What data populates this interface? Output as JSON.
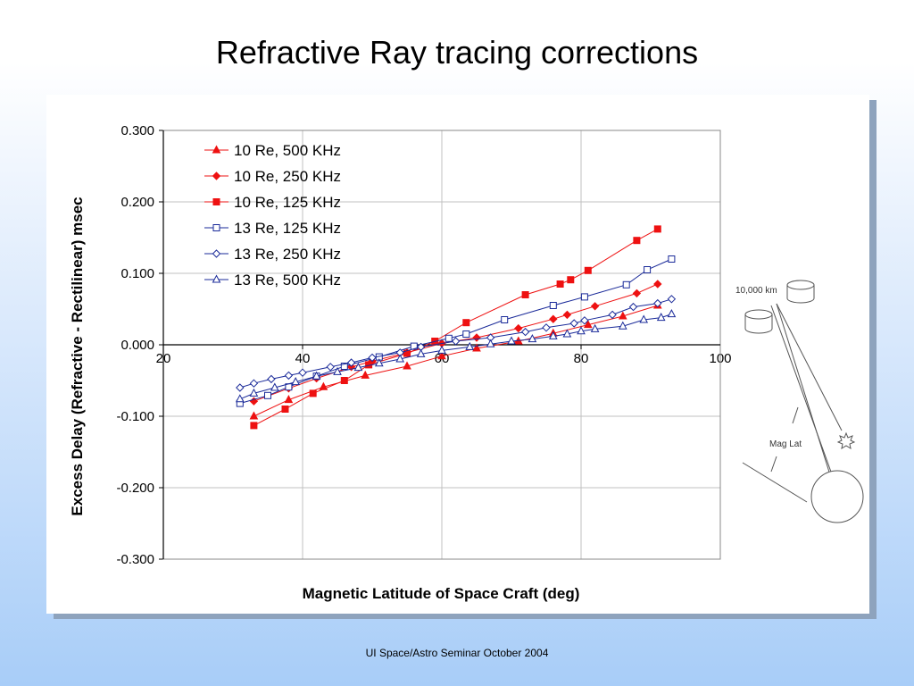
{
  "slide": {
    "title": "Refractive Ray tracing corrections",
    "footer": "UI Space/Astro Seminar October 2004"
  },
  "diagram": {
    "distance_label": "10,000 km",
    "angle_label": "Mag Lat"
  },
  "colors": {
    "red": "#ee1111",
    "blue": "#1a2a99",
    "grid": "#c0c0c0"
  },
  "chart_data": {
    "type": "line",
    "title": "",
    "xlabel": "Magnetic Latitude of Space Craft (deg)",
    "ylabel": "Excess Delay (Refractive - Rectilinear) msec",
    "xlim": [
      20,
      100
    ],
    "ylim": [
      -0.3,
      0.3
    ],
    "x_ticks": [
      "20",
      "40",
      "60",
      "80",
      "100"
    ],
    "y_ticks": [
      "-0.300",
      "-0.200",
      "-0.100",
      "0.000",
      "0.100",
      "0.200",
      "0.300"
    ],
    "grid": true,
    "legend_position": "top-left",
    "series": [
      {
        "name": "10 Re, 500 KHz",
        "color": "red",
        "marker": "triangle",
        "filled": true,
        "x": [
          33,
          38,
          43,
          49,
          55,
          60,
          65,
          71,
          76,
          81,
          86,
          91
        ],
        "y": [
          -0.1,
          -0.077,
          -0.059,
          -0.043,
          -0.03,
          -0.016,
          -0.005,
          0.005,
          0.016,
          0.028,
          0.04,
          0.055
        ]
      },
      {
        "name": "10 Re, 250 KHz",
        "color": "red",
        "marker": "diamond",
        "filled": true,
        "x": [
          33,
          38,
          42,
          47,
          50,
          55,
          60,
          65,
          71,
          76,
          78,
          82,
          88,
          91
        ],
        "y": [
          -0.079,
          -0.061,
          -0.047,
          -0.031,
          -0.023,
          -0.011,
          0.002,
          0.01,
          0.023,
          0.036,
          0.042,
          0.054,
          0.072,
          0.085
        ]
      },
      {
        "name": "10 Re, 125 KHz",
        "color": "red",
        "marker": "square",
        "filled": true,
        "x": [
          33,
          37.5,
          41.5,
          46,
          49.5,
          55,
          59,
          63.5,
          72,
          77,
          78.5,
          81,
          88,
          91
        ],
        "y": [
          -0.113,
          -0.09,
          -0.068,
          -0.05,
          -0.028,
          -0.012,
          0.005,
          0.031,
          0.07,
          0.085,
          0.091,
          0.104,
          0.146,
          0.162
        ]
      },
      {
        "name": "13 Re, 125 KHz",
        "color": "blue",
        "marker": "square",
        "filled": false,
        "x": [
          31,
          35,
          38,
          42,
          46,
          51,
          56,
          61,
          63.5,
          69,
          76,
          80.5,
          86.5,
          89.5,
          93
        ],
        "y": [
          -0.082,
          -0.071,
          -0.059,
          -0.044,
          -0.03,
          -0.017,
          -0.002,
          0.009,
          0.015,
          0.035,
          0.055,
          0.067,
          0.084,
          0.105,
          0.12
        ]
      },
      {
        "name": "13 Re, 250 KHz",
        "color": "blue",
        "marker": "diamond",
        "filled": false,
        "x": [
          31,
          33,
          35.5,
          38,
          40,
          44,
          47,
          50,
          54,
          57,
          62,
          67,
          72,
          75,
          79,
          80.5,
          84.5,
          87.5,
          91,
          93
        ],
        "y": [
          -0.06,
          -0.054,
          -0.048,
          -0.043,
          -0.039,
          -0.031,
          -0.025,
          -0.018,
          -0.011,
          -0.003,
          0.005,
          0.01,
          0.018,
          0.024,
          0.03,
          0.034,
          0.042,
          0.053,
          0.058,
          0.064
        ]
      },
      {
        "name": "13 Re, 500 KHz",
        "color": "blue",
        "marker": "triangle",
        "filled": false,
        "x": [
          31,
          33,
          36,
          39,
          42,
          45,
          48,
          51,
          54,
          57,
          60,
          64,
          67,
          70,
          73,
          76,
          78,
          80,
          82,
          86,
          89,
          91.5,
          93
        ],
        "y": [
          -0.076,
          -0.068,
          -0.06,
          -0.052,
          -0.044,
          -0.038,
          -0.032,
          -0.026,
          -0.02,
          -0.013,
          -0.008,
          -0.003,
          0.001,
          0.005,
          0.008,
          0.012,
          0.015,
          0.019,
          0.022,
          0.026,
          0.035,
          0.038,
          0.043
        ]
      }
    ]
  }
}
